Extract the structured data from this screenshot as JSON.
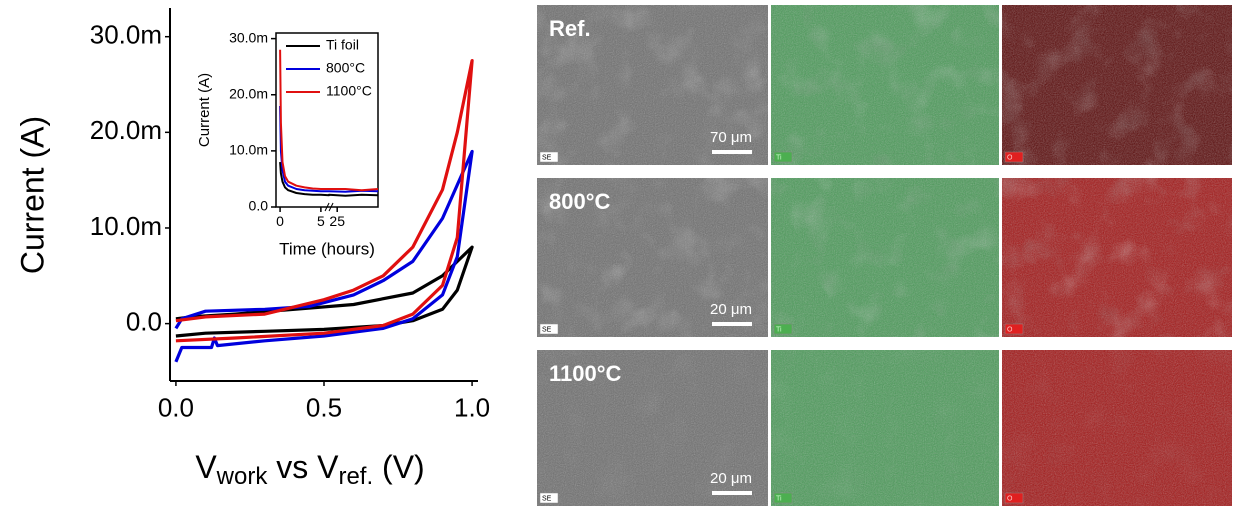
{
  "chart_data": [
    {
      "type": "line",
      "ylabel": "Current (A)",
      "xlabel": [
        "V",
        "work",
        " vs V",
        "ref.",
        " (V)"
      ],
      "xlim": [
        -0.02,
        1.02
      ],
      "ylim": [
        -0.006,
        0.033
      ],
      "xticks": [
        {
          "value": 0,
          "label": "0.0"
        },
        {
          "value": 0.5,
          "label": "0.5"
        },
        {
          "value": 1,
          "label": "1.0"
        }
      ],
      "yticks": [
        {
          "value": 0,
          "label": "0.0"
        },
        {
          "value": 0.01,
          "label": "10.0m"
        },
        {
          "value": 0.02,
          "label": "20.0m"
        },
        {
          "value": 0.03,
          "label": "30.0m"
        }
      ],
      "series": [
        {
          "color": "#000000",
          "x": [
            0,
            0.1,
            0.3,
            0.5,
            0.7,
            0.8,
            0.9,
            0.95,
            1.0,
            0.95,
            0.9,
            0.8,
            0.6,
            0.4,
            0.2,
            0.05,
            0
          ],
          "values": [
            -0.0013,
            -0.001,
            -0.0008,
            -0.0006,
            -0.0002,
            0.0003,
            0.0015,
            0.0035,
            0.008,
            0.0065,
            0.005,
            0.0032,
            0.002,
            0.0015,
            0.001,
            0.0007,
            0.0005
          ]
        },
        {
          "color": "#0000dd",
          "x": [
            0,
            0.02,
            0.12,
            0.13,
            0.14,
            0.3,
            0.5,
            0.7,
            0.8,
            0.9,
            0.95,
            1.0,
            0.95,
            0.9,
            0.8,
            0.7,
            0.6,
            0.45,
            0.3,
            0.1,
            0.02,
            0
          ],
          "values": [
            -0.004,
            -0.0025,
            -0.0025,
            -0.0015,
            -0.0023,
            -0.0018,
            -0.0013,
            -0.0005,
            0.0005,
            0.003,
            0.007,
            0.018,
            0.0145,
            0.011,
            0.0065,
            0.0045,
            0.003,
            0.0018,
            0.0015,
            0.0013,
            0.0005,
            -0.0005
          ]
        },
        {
          "color": "#e01010",
          "x": [
            0,
            0.2,
            0.5,
            0.7,
            0.8,
            0.9,
            0.95,
            1.0,
            0.95,
            0.9,
            0.8,
            0.7,
            0.6,
            0.5,
            0.3,
            0.1,
            0
          ],
          "values": [
            -0.0018,
            -0.0015,
            -0.001,
            -0.0002,
            0.001,
            0.004,
            0.009,
            0.0275,
            0.02,
            0.014,
            0.008,
            0.005,
            0.0035,
            0.0025,
            0.001,
            0.0007,
            0.0003
          ]
        }
      ]
    },
    {
      "type": "line",
      "ylabel": "Current (A)",
      "xlabel": "Time (hours)",
      "xlim": [
        -0.5,
        30
      ],
      "xbreak": [
        6,
        24
      ],
      "ylim": [
        0,
        0.031
      ],
      "xticks": [
        0,
        5,
        25
      ],
      "yticks": [
        {
          "value": 0,
          "label": "0.0"
        },
        {
          "value": 0.01,
          "label": "10.0m"
        },
        {
          "value": 0.02,
          "label": "20.0m"
        },
        {
          "value": 0.03,
          "label": "30.0m"
        }
      ],
      "x": [
        0,
        0.1,
        0.3,
        0.6,
        1,
        2,
        3,
        4,
        5,
        6,
        24,
        26,
        28,
        30
      ],
      "series": [
        {
          "name": "Ti foil",
          "color": "#000000",
          "values": [
            0.008,
            0.006,
            0.0045,
            0.0035,
            0.003,
            0.0025,
            0.0023,
            0.0022,
            0.0022,
            0.0021,
            0.0022,
            0.002,
            0.0022,
            0.0021
          ]
        },
        {
          "name": "800°C",
          "color": "#0000dd",
          "values": [
            0.018,
            0.01,
            0.0065,
            0.0045,
            0.0038,
            0.0032,
            0.003,
            0.0029,
            0.0028,
            0.0028,
            0.0028,
            0.0027,
            0.0029,
            0.0028
          ]
        },
        {
          "name": "1100°C",
          "color": "#e01010",
          "values": [
            0.028,
            0.015,
            0.008,
            0.0055,
            0.0045,
            0.0038,
            0.0035,
            0.0033,
            0.0032,
            0.0032,
            0.0032,
            0.0032,
            0.003,
            0.0032
          ]
        }
      ]
    }
  ],
  "panels": [
    {
      "label": "Ref.",
      "scale_bar": "70 μm",
      "channels": [
        "SE",
        "Ti",
        "O"
      ]
    },
    {
      "label": "800°C",
      "scale_bar": "20 μm",
      "channels": [
        "SE",
        "Ti",
        "O"
      ]
    },
    {
      "label": "1100°C",
      "scale_bar": "20 μm",
      "channels": [
        "SE",
        "Ti",
        "O"
      ]
    }
  ]
}
